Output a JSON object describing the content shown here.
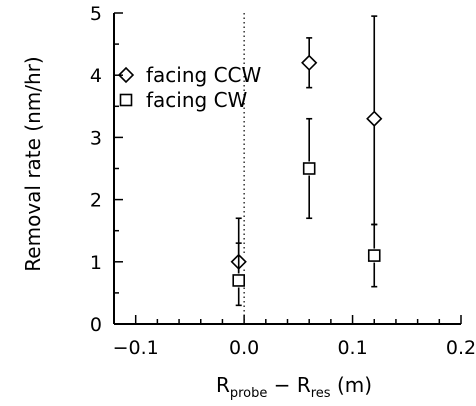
{
  "chart_data": {
    "type": "scatter",
    "xlabel": {
      "main1": "R",
      "sub1": "probe",
      "minus": " − ",
      "main2": "R",
      "sub2": "res",
      "unit": " (m)"
    },
    "ylabel": "Removal rate (nm/hr)",
    "xlim": [
      -0.12,
      0.2
    ],
    "ylim": [
      0,
      5
    ],
    "xticks": [
      -0.1,
      0.0,
      0.1,
      0.2
    ],
    "xtick_labels": [
      "−0.1",
      "0.0",
      "0.1",
      "0.2"
    ],
    "yticks": [
      0,
      1,
      2,
      3,
      4,
      5
    ],
    "ytick_labels": [
      "0",
      "1",
      "2",
      "3",
      "4",
      "5"
    ],
    "reference_line_x": 0.0,
    "legend_position": "top-left",
    "series": [
      {
        "name": "facing CCW",
        "marker": "diamond",
        "points": [
          {
            "x": -0.005,
            "y": 1.0,
            "err_low": 0.7,
            "err_high": 1.3
          },
          {
            "x": 0.06,
            "y": 4.2,
            "err_low": 3.8,
            "err_high": 4.6
          },
          {
            "x": 0.12,
            "y": 3.3,
            "err_low": 1.6,
            "err_high": 4.95
          }
        ]
      },
      {
        "name": "facing CW",
        "marker": "square",
        "points": [
          {
            "x": -0.005,
            "y": 0.7,
            "err_low": 0.3,
            "err_high": 1.7
          },
          {
            "x": 0.06,
            "y": 2.5,
            "err_low": 1.7,
            "err_high": 3.3
          },
          {
            "x": 0.12,
            "y": 1.1,
            "err_low": 0.6,
            "err_high": 1.6
          }
        ]
      }
    ]
  }
}
